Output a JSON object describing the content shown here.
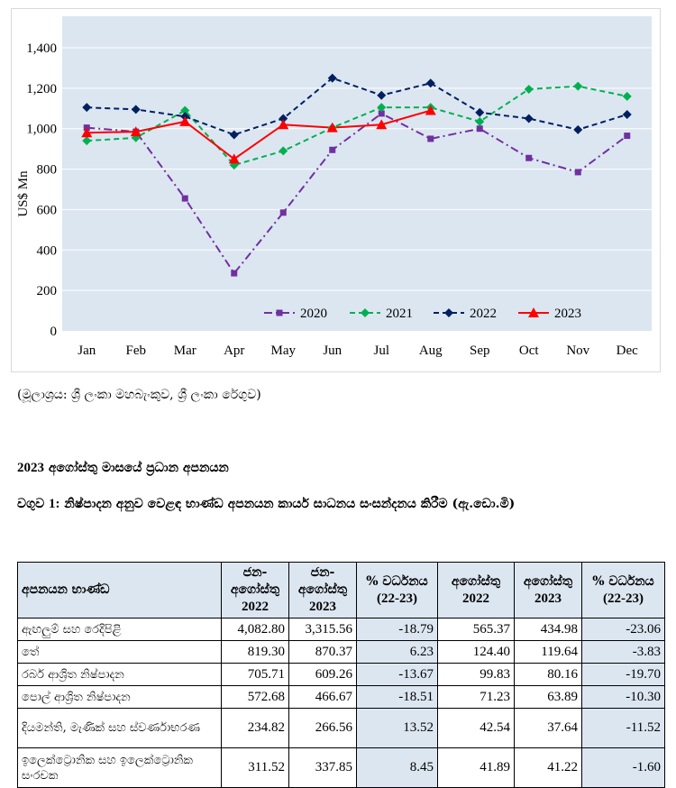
{
  "chart_data": {
    "type": "line",
    "ylabel": "US$ Mn",
    "ylim": [
      0,
      1400
    ],
    "yticks": [
      "0",
      "200",
      "400",
      "600",
      "800",
      "1,000",
      "1,200",
      "1,400"
    ],
    "categories": [
      "Jan",
      "Feb",
      "Mar",
      "Apr",
      "May",
      "Jun",
      "Jul",
      "Aug",
      "Sep",
      "Oct",
      "Nov",
      "Dec"
    ],
    "legend_position": "bottom-right",
    "series": [
      {
        "name": "2020",
        "color": "#7030a0",
        "marker": "square",
        "dash": "dashdot",
        "values": [
          1005,
          985,
          655,
          285,
          585,
          895,
          1075,
          950,
          1000,
          855,
          785,
          965
        ]
      },
      {
        "name": "2021",
        "color": "#00b050",
        "marker": "diamond",
        "dash": "dashed",
        "values": [
          940,
          955,
          1090,
          820,
          890,
          1005,
          1105,
          1105,
          1035,
          1195,
          1210,
          1160
        ]
      },
      {
        "name": "2022",
        "color": "#002060",
        "marker": "diamond",
        "dash": "dashed",
        "values": [
          1105,
          1095,
          1060,
          970,
          1050,
          1250,
          1165,
          1225,
          1080,
          1050,
          995,
          1070
        ]
      },
      {
        "name": "2023",
        "color": "#ff0000",
        "marker": "triangle",
        "dash": "solid",
        "values": [
          980,
          985,
          1035,
          850,
          1020,
          1005,
          1020,
          1090,
          null,
          null,
          null,
          null
        ]
      }
    ]
  },
  "source": "(මූලාශ්‍රය: ශ්‍රී ලංකා මහබැංකුව, ශ්‍රී ලංකා රේගුව)",
  "section_title": {
    "year": "2023",
    "text": " අගෝස්තු මාසයේ ප්‍රධාන අපනයන"
  },
  "table_title": {
    "prefix": "වගුව ",
    "number": "1:",
    "text": " නිෂ්පාදන අනුව වෙළඳ භාණ්ඩ අපනයන කාර්ය සාධනය සංසන්දනය කිරීම (ඇ.ඩො.මි)"
  },
  "table": {
    "headers": [
      {
        "label": "අපනයන භාණ්ඩ",
        "year": ""
      },
      {
        "label": "ජන-අගෝස්තු",
        "year": "2022"
      },
      {
        "label": "ජන-අගෝස්තු",
        "year": "2023"
      },
      {
        "label": "% වර්ධනය",
        "year": "(22-23)"
      },
      {
        "label": "අගෝස්තු",
        "year": "2022"
      },
      {
        "label": "අගෝස්තු",
        "year": "2023"
      },
      {
        "label": "% වර්ධනය",
        "year": "(22-23)"
      }
    ],
    "rows": [
      [
        "ඇඟලුම් සහ රෙදිපිළි",
        "4,082.80",
        "3,315.56",
        "-18.79",
        "565.37",
        "434.98",
        "-23.06"
      ],
      [
        "තේ",
        "819.30",
        "870.37",
        "6.23",
        "124.40",
        "119.64",
        "-3.83"
      ],
      [
        "රබර් ආශ්‍රිත නිෂ්පාදන",
        "705.71",
        "609.26",
        "-13.67",
        "99.83",
        "80.16",
        "-19.70"
      ],
      [
        "පොල් ආශ්‍රිත නිෂ්පාදන",
        "572.68",
        "466.67",
        "-18.51",
        "71.23",
        "63.89",
        "-10.30"
      ],
      [
        "දියමන්ති, මැණික් සහ ස්වර්ණාභරණ",
        "234.82",
        "266.56",
        "13.52",
        "42.54",
        "37.64",
        "-11.52"
      ],
      [
        "ඉලෙක්ට්‍රොනික සහ ඉලෙක්ට්‍රොනික සංරචක",
        "311.52",
        "337.85",
        "8.45",
        "41.89",
        "41.22",
        "-1.60"
      ]
    ]
  }
}
